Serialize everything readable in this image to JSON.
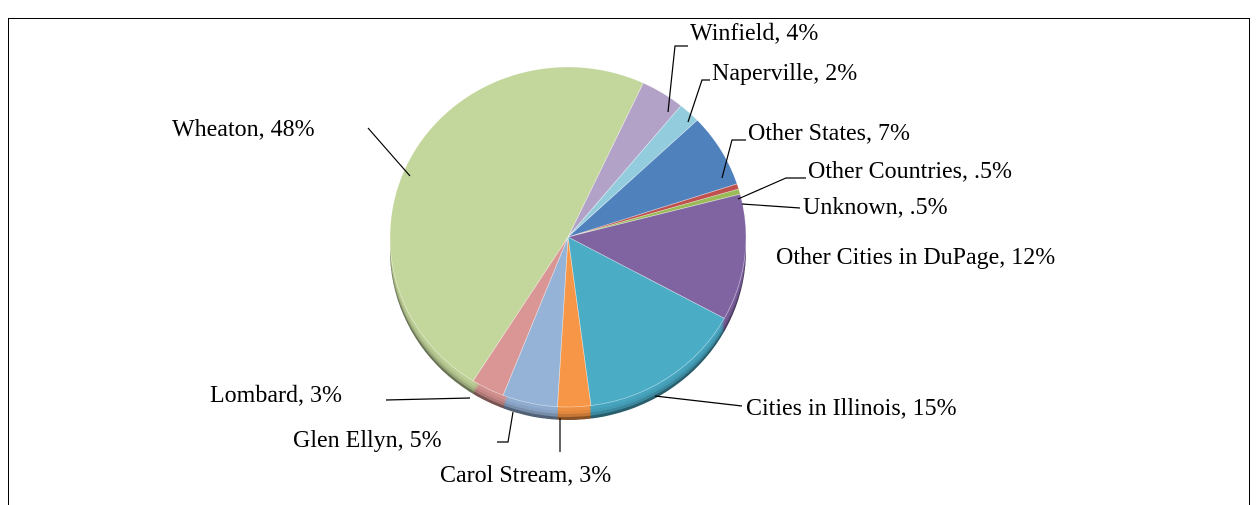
{
  "chart_data": {
    "type": "pie",
    "start_angle": 25,
    "categories": [
      "Winfield, 4%",
      "Naperville, 2%",
      "Other States, 7%",
      "Other Countries, .5%",
      "Unknown, .5%",
      "Other Cities in DuPage, 12%",
      "Cities in Illinois, 15%",
      "Carol Stream, 3%",
      "Glen Ellyn, 5%",
      "Lombard, 3%",
      "Wheaton, 48%"
    ],
    "values": [
      4,
      2,
      7,
      0.5,
      0.5,
      12,
      15,
      3,
      5,
      3,
      48
    ],
    "colors": [
      "#b3a2c7",
      "#93cddd",
      "#4f81bd",
      "#c0504d",
      "#9bbb59",
      "#8064a2",
      "#4bacc6",
      "#f79646",
      "#95b3d7",
      "#d99694",
      "#c3d69b"
    ]
  }
}
